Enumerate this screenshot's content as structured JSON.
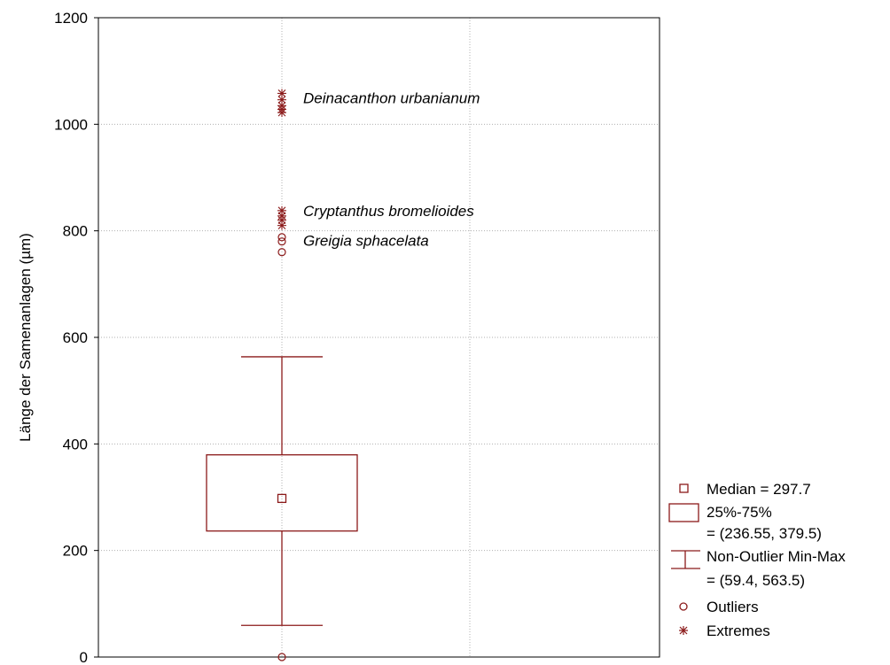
{
  "colors": {
    "series": "#8b1a1a",
    "grid": "#b0b0b0",
    "axis": "#000000"
  },
  "chart_data": {
    "type": "box",
    "ylabel": "Länge der Samenanlagen (µm)",
    "xlabel": "",
    "ylim": [
      0,
      1200
    ],
    "yticks": [
      0,
      200,
      400,
      600,
      800,
      1000,
      1200
    ],
    "grid": true,
    "legend_position": "right-bottom outside",
    "box": {
      "median": 297.7,
      "q1": 236.55,
      "q3": 379.5,
      "whisker_min": 59.4,
      "whisker_max": 563.5
    },
    "outliers": [
      760,
      780,
      788,
      0
    ],
    "extremes": [
      1022,
      1028,
      1035,
      1046,
      1058,
      810,
      820,
      828,
      838
    ],
    "annotations": [
      {
        "text": "Deinacanthon urbanianum",
        "y": 1050
      },
      {
        "text": "Cryptanthus bromelioides",
        "y": 838
      },
      {
        "text": "Greigia sphacelata",
        "y": 782
      }
    ],
    "legend": {
      "median": "Median = 297.7",
      "box_label": "25%-75%",
      "box_value": "= (236.55, 379.5)",
      "whisker_label": "Non-Outlier Min-Max",
      "whisker_value": "= (59.4, 563.5)",
      "outliers": "Outliers",
      "extremes": "Extremes"
    }
  }
}
